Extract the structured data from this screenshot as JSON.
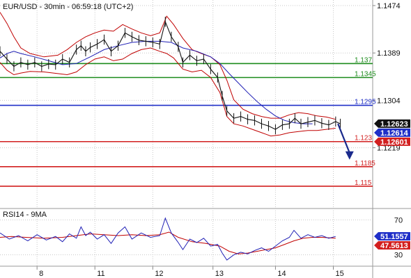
{
  "colors": {
    "background": "#ffffff",
    "grid": "#c8c8c8",
    "price": "#111111",
    "bollinger": "#c00000",
    "moving_average": "#1f1fb5",
    "level_green": "#1a8a1a",
    "level_blue": "#1f2fc8",
    "level_red": "#d21f1f",
    "arrow": "#1a2a8c",
    "tag_black": "#111111",
    "tag_blue": "#1f2fc8",
    "tag_red": "#d21f1f",
    "rsi_line": "#1f1fb5",
    "rsi_ma": "#c00000"
  },
  "chart_data": [
    {
      "type": "line",
      "title": "EUR/USD - 30min - 06:59:18 (UTC+2)",
      "y_ticks": [
        "1.1474",
        "1.1389",
        "1.1304",
        "1.1219"
      ],
      "ylim": [
        1.111,
        1.1484
      ],
      "x_ticks": [
        {
          "label": "8",
          "t": 0.05
        },
        {
          "label": "11",
          "t": 1.3
        },
        {
          "label": "12",
          "t": 2.55
        },
        {
          "label": "13",
          "t": 3.85
        },
        {
          "label": "14",
          "t": 5.2
        },
        {
          "label": "15",
          "t": 6.45
        }
      ],
      "xlim": [
        -0.75,
        7.3
      ],
      "grid": true,
      "levels": [
        {
          "label": "1.137",
          "value": 1.137,
          "color": "green"
        },
        {
          "label": "1.1345",
          "value": 1.1345,
          "color": "green"
        },
        {
          "label": "1.1295",
          "value": 1.1295,
          "color": "blue"
        },
        {
          "label": "1.123",
          "value": 1.123,
          "color": "red"
        },
        {
          "label": "1.1185",
          "value": 1.1185,
          "color": "red"
        },
        {
          "label": "1.115",
          "value": 1.115,
          "color": "red"
        }
      ],
      "price_tags": [
        {
          "label": "1.12623",
          "value": 1.12623,
          "color": "black"
        },
        {
          "label": "1.12614",
          "value": 1.12614,
          "color": "blue"
        },
        {
          "label": "1.12601",
          "value": 1.12601,
          "color": "red"
        }
      ],
      "arrow": {
        "t_start": 6.55,
        "t_end": 6.8,
        "from": 1.1262,
        "to": 1.12
      },
      "series": [
        {
          "role": "price",
          "points": [
            [
              -0.75,
              1.1392
            ],
            [
              -0.6,
              1.1378
            ],
            [
              -0.45,
              1.1365
            ],
            [
              -0.3,
              1.1372
            ],
            [
              -0.15,
              1.1368
            ],
            [
              0.0,
              1.1372
            ],
            [
              0.15,
              1.1365
            ],
            [
              0.3,
              1.1369
            ],
            [
              0.45,
              1.1368
            ],
            [
              0.6,
              1.1378
            ],
            [
              0.75,
              1.1372
            ],
            [
              0.9,
              1.1395
            ],
            [
              1.0,
              1.1402
            ],
            [
              1.1,
              1.1392
            ],
            [
              1.2,
              1.1399
            ],
            [
              1.35,
              1.1405
            ],
            [
              1.5,
              1.1413
            ],
            [
              1.65,
              1.1392
            ],
            [
              1.8,
              1.1402
            ],
            [
              1.95,
              1.1425
            ],
            [
              2.1,
              1.1418
            ],
            [
              2.25,
              1.1412
            ],
            [
              2.4,
              1.141
            ],
            [
              2.55,
              1.1408
            ],
            [
              2.7,
              1.1405
            ],
            [
              2.82,
              1.1445
            ],
            [
              2.95,
              1.1418
            ],
            [
              3.1,
              1.14
            ],
            [
              3.2,
              1.1372
            ],
            [
              3.35,
              1.1385
            ],
            [
              3.5,
              1.1375
            ],
            [
              3.65,
              1.1378
            ],
            [
              3.8,
              1.136
            ],
            [
              3.95,
              1.1345
            ],
            [
              4.05,
              1.1312
            ],
            [
              4.15,
              1.1285
            ],
            [
              4.3,
              1.1272
            ],
            [
              4.45,
              1.1275
            ],
            [
              4.6,
              1.127
            ],
            [
              4.75,
              1.1268
            ],
            [
              4.9,
              1.1262
            ],
            [
              5.05,
              1.1258
            ],
            [
              5.2,
              1.1252
            ],
            [
              5.35,
              1.126
            ],
            [
              5.5,
              1.1262
            ],
            [
              5.62,
              1.1272
            ],
            [
              5.75,
              1.1262
            ],
            [
              5.9,
              1.1265
            ],
            [
              6.05,
              1.1268
            ],
            [
              6.2,
              1.1263
            ],
            [
              6.35,
              1.126
            ],
            [
              6.5,
              1.1266
            ],
            [
              6.6,
              1.1262
            ]
          ]
        },
        {
          "role": "upper_band",
          "points": [
            [
              -0.75,
              1.1462
            ],
            [
              -0.6,
              1.1442
            ],
            [
              -0.45,
              1.1418
            ],
            [
              -0.3,
              1.1398
            ],
            [
              -0.1,
              1.1388
            ],
            [
              0.2,
              1.1382
            ],
            [
              0.5,
              1.1385
            ],
            [
              0.7,
              1.1395
            ],
            [
              0.9,
              1.1408
            ],
            [
              1.1,
              1.1418
            ],
            [
              1.3,
              1.1425
            ],
            [
              1.5,
              1.143
            ],
            [
              1.7,
              1.1428
            ],
            [
              1.9,
              1.144
            ],
            [
              2.1,
              1.1432
            ],
            [
              2.3,
              1.1425
            ],
            [
              2.5,
              1.142
            ],
            [
              2.7,
              1.1425
            ],
            [
              2.85,
              1.1455
            ],
            [
              3.0,
              1.144
            ],
            [
              3.2,
              1.1415
            ],
            [
              3.4,
              1.1395
            ],
            [
              3.6,
              1.1388
            ],
            [
              3.8,
              1.1382
            ],
            [
              4.0,
              1.1368
            ],
            [
              4.15,
              1.134
            ],
            [
              4.3,
              1.1305
            ],
            [
              4.5,
              1.1288
            ],
            [
              4.7,
              1.128
            ],
            [
              4.9,
              1.1275
            ],
            [
              5.1,
              1.1272
            ],
            [
              5.3,
              1.1272
            ],
            [
              5.5,
              1.1278
            ],
            [
              5.7,
              1.1282
            ],
            [
              5.9,
              1.128
            ],
            [
              6.1,
              1.1276
            ],
            [
              6.3,
              1.1274
            ],
            [
              6.5,
              1.127
            ]
          ]
        },
        {
          "role": "lower_band",
          "points": [
            [
              -0.75,
              1.1372
            ],
            [
              -0.6,
              1.1358
            ],
            [
              -0.45,
              1.135
            ],
            [
              -0.3,
              1.1353
            ],
            [
              -0.1,
              1.1356
            ],
            [
              0.2,
              1.1355
            ],
            [
              0.5,
              1.1352
            ],
            [
              0.7,
              1.135
            ],
            [
              0.9,
              1.1355
            ],
            [
              1.1,
              1.1368
            ],
            [
              1.3,
              1.1378
            ],
            [
              1.5,
              1.1382
            ],
            [
              1.7,
              1.1375
            ],
            [
              1.9,
              1.1378
            ],
            [
              2.1,
              1.1388
            ],
            [
              2.3,
              1.1395
            ],
            [
              2.5,
              1.1398
            ],
            [
              2.7,
              1.1392
            ],
            [
              2.85,
              1.1388
            ],
            [
              3.0,
              1.138
            ],
            [
              3.2,
              1.136
            ],
            [
              3.4,
              1.1355
            ],
            [
              3.6,
              1.1358
            ],
            [
              3.8,
              1.1345
            ],
            [
              4.0,
              1.1318
            ],
            [
              4.15,
              1.1275
            ],
            [
              4.3,
              1.1262
            ],
            [
              4.5,
              1.1258
            ],
            [
              4.7,
              1.1252
            ],
            [
              4.9,
              1.1246
            ],
            [
              5.1,
              1.124
            ],
            [
              5.3,
              1.1242
            ],
            [
              5.5,
              1.1246
            ],
            [
              5.7,
              1.1248
            ],
            [
              5.9,
              1.125
            ],
            [
              6.1,
              1.125
            ],
            [
              6.3,
              1.1252
            ],
            [
              6.5,
              1.1254
            ]
          ]
        },
        {
          "role": "moving_average",
          "points": [
            [
              -0.75,
              1.138
            ],
            [
              -0.6,
              1.1388
            ],
            [
              -0.45,
              1.1392
            ],
            [
              -0.3,
              1.1388
            ],
            [
              0.0,
              1.1382
            ],
            [
              0.3,
              1.1375
            ],
            [
              0.6,
              1.1368
            ],
            [
              0.9,
              1.137
            ],
            [
              1.2,
              1.1382
            ],
            [
              1.5,
              1.1395
            ],
            [
              1.8,
              1.1402
            ],
            [
              2.1,
              1.1408
            ],
            [
              2.4,
              1.141
            ],
            [
              2.7,
              1.141
            ],
            [
              2.95,
              1.1408
            ],
            [
              3.2,
              1.1398
            ],
            [
              3.5,
              1.1392
            ],
            [
              3.8,
              1.1382
            ],
            [
              4.0,
              1.137
            ],
            [
              4.2,
              1.1352
            ],
            [
              4.4,
              1.1335
            ],
            [
              4.6,
              1.1318
            ],
            [
              4.8,
              1.1302
            ],
            [
              5.0,
              1.1288
            ],
            [
              5.2,
              1.1276
            ],
            [
              5.4,
              1.1268
            ],
            [
              5.6,
              1.1264
            ],
            [
              5.8,
              1.1262
            ],
            [
              6.0,
              1.1262
            ]
          ]
        }
      ]
    },
    {
      "type": "line",
      "title": "RSI14 - 9MA",
      "y_ticks": [
        "70",
        "30"
      ],
      "ylim": [
        17,
        83
      ],
      "xlim": [
        -0.75,
        7.3
      ],
      "grid": true,
      "value_tags": [
        {
          "label": "51.1557",
          "value": 51.1557,
          "color": "blue"
        },
        {
          "label": "47.5613",
          "value": 47.5613,
          "color": "red"
        }
      ],
      "series": [
        {
          "role": "rsi",
          "points": [
            [
              -0.75,
              55
            ],
            [
              -0.55,
              48
            ],
            [
              -0.35,
              52
            ],
            [
              -0.15,
              46
            ],
            [
              0.05,
              53
            ],
            [
              0.25,
              47
            ],
            [
              0.45,
              51
            ],
            [
              0.6,
              45
            ],
            [
              0.75,
              54
            ],
            [
              0.9,
              49
            ],
            [
              1.0,
              62
            ],
            [
              1.1,
              52
            ],
            [
              1.2,
              56
            ],
            [
              1.35,
              48
            ],
            [
              1.5,
              53
            ],
            [
              1.65,
              43
            ],
            [
              1.8,
              55
            ],
            [
              1.95,
              62
            ],
            [
              2.1,
              48
            ],
            [
              2.3,
              55
            ],
            [
              2.5,
              50
            ],
            [
              2.7,
              52
            ],
            [
              2.82,
              72
            ],
            [
              2.95,
              55
            ],
            [
              3.1,
              44
            ],
            [
              3.2,
              36
            ],
            [
              3.35,
              48
            ],
            [
              3.5,
              44
            ],
            [
              3.65,
              49
            ],
            [
              3.8,
              40
            ],
            [
              3.95,
              42
            ],
            [
              4.05,
              32
            ],
            [
              4.15,
              24
            ],
            [
              4.3,
              30
            ],
            [
              4.45,
              33
            ],
            [
              4.6,
              31
            ],
            [
              4.75,
              35
            ],
            [
              4.9,
              38
            ],
            [
              5.05,
              34
            ],
            [
              5.2,
              40
            ],
            [
              5.35,
              46
            ],
            [
              5.5,
              50
            ],
            [
              5.6,
              58
            ],
            [
              5.75,
              49
            ],
            [
              5.9,
              53
            ],
            [
              6.05,
              50
            ],
            [
              6.2,
              52
            ],
            [
              6.35,
              49
            ],
            [
              6.5,
              51
            ]
          ]
        },
        {
          "role": "rsi_ma",
          "points": [
            [
              -0.75,
              50
            ],
            [
              -0.5,
              51
            ],
            [
              -0.2,
              50
            ],
            [
              0.2,
              49
            ],
            [
              0.6,
              50
            ],
            [
              0.9,
              52
            ],
            [
              1.2,
              54
            ],
            [
              1.5,
              53
            ],
            [
              1.8,
              52
            ],
            [
              2.1,
              53
            ],
            [
              2.4,
              52
            ],
            [
              2.7,
              53
            ],
            [
              2.9,
              56
            ],
            [
              3.1,
              50
            ],
            [
              3.4,
              45
            ],
            [
              3.7,
              43
            ],
            [
              4.0,
              40
            ],
            [
              4.2,
              34
            ],
            [
              4.4,
              31
            ],
            [
              4.6,
              32
            ],
            [
              4.8,
              34
            ],
            [
              5.0,
              36
            ],
            [
              5.2,
              38
            ],
            [
              5.4,
              42
            ],
            [
              5.6,
              46
            ],
            [
              5.8,
              49
            ],
            [
              6.0,
              50
            ],
            [
              6.2,
              50
            ],
            [
              6.5,
              49
            ]
          ]
        }
      ]
    }
  ]
}
